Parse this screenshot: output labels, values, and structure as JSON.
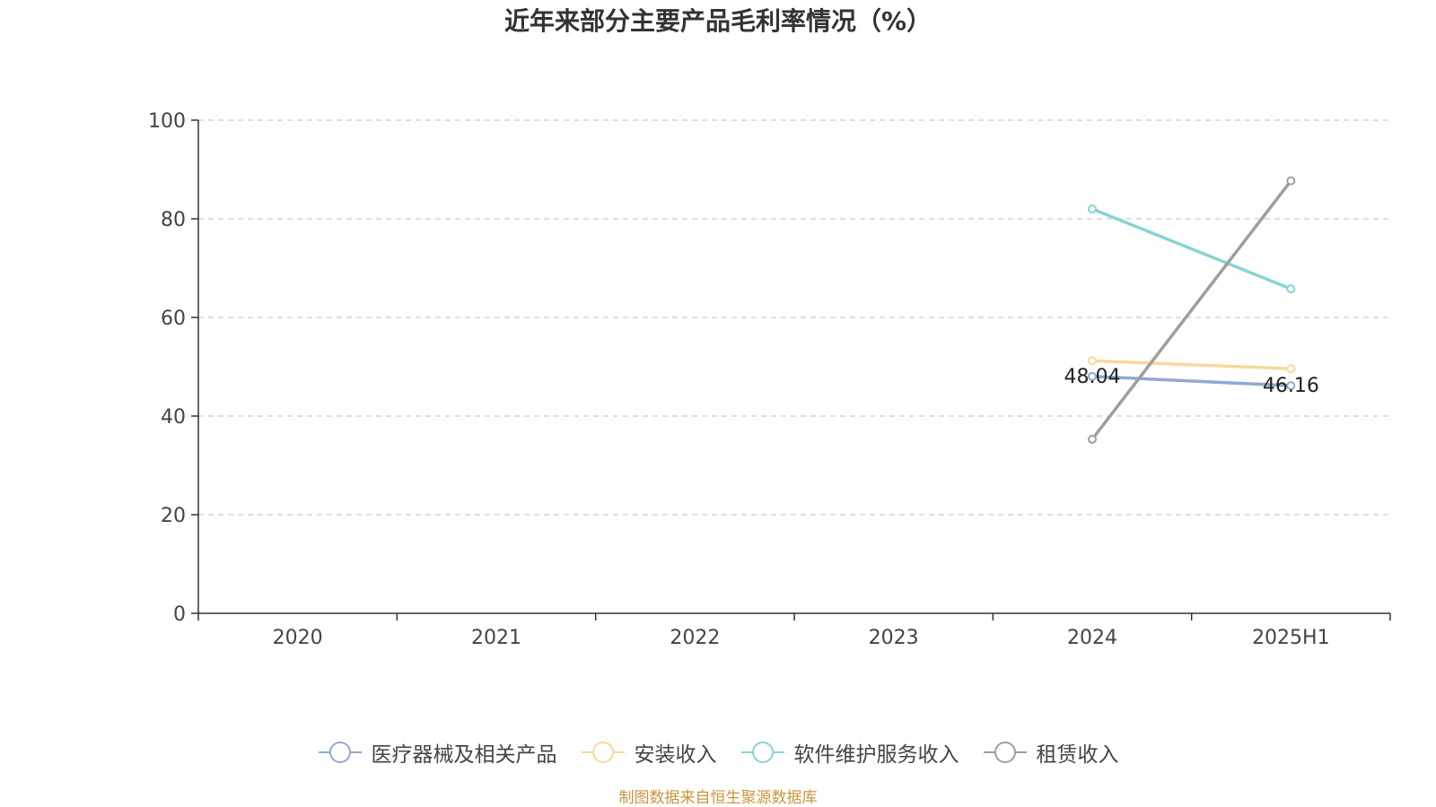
{
  "chart_data": {
    "type": "line",
    "title": "近年来部分主要产品毛利率情况（%）",
    "categories": [
      "2020",
      "2021",
      "2022",
      "2023",
      "2024",
      "2025H1"
    ],
    "ylim": [
      0,
      100
    ],
    "yticks": [
      "0",
      "20",
      "40",
      "60",
      "80",
      "100"
    ],
    "grid": true,
    "legend_position": "bottom",
    "series": [
      {
        "name": "医疗器械及相关产品",
        "color": "#8fa9d4",
        "values": [
          null,
          null,
          null,
          null,
          48.04,
          46.16
        ],
        "labels": [
          null,
          null,
          null,
          null,
          "48.04",
          "46.16"
        ]
      },
      {
        "name": "安装收入",
        "color": "#f5d99b",
        "values": [
          null,
          null,
          null,
          null,
          51.2,
          49.6
        ],
        "labels": [
          null,
          null,
          null,
          null,
          null,
          null
        ]
      },
      {
        "name": "软件维护服务收入",
        "color": "#86d4d4",
        "values": [
          null,
          null,
          null,
          null,
          82.0,
          65.8
        ],
        "labels": [
          null,
          null,
          null,
          null,
          null,
          null
        ]
      },
      {
        "name": "租赁收入",
        "color": "#9e9e9e",
        "values": [
          null,
          null,
          null,
          null,
          35.3,
          87.7
        ],
        "labels": [
          null,
          null,
          null,
          null,
          null,
          null
        ]
      }
    ]
  },
  "footer": {
    "source": "制图数据来自恒生聚源数据库",
    "source_color": "#c8963c"
  }
}
